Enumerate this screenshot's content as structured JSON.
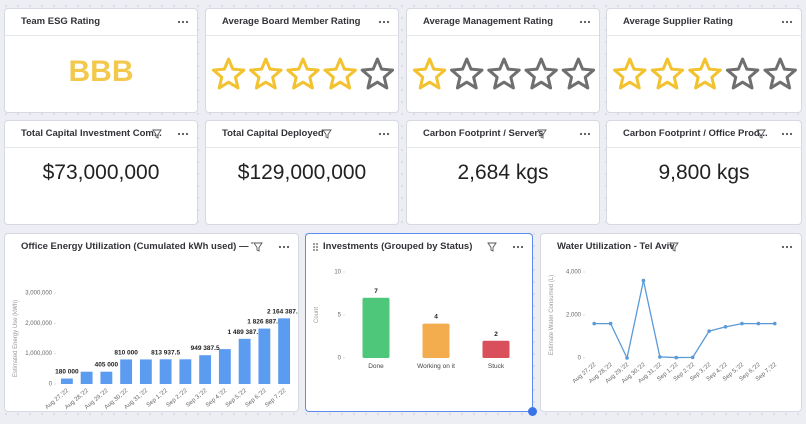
{
  "esg": {
    "title": "Team ESG Rating",
    "rating": "BBB"
  },
  "star_ratings": [
    {
      "title": "Average Board Member Rating",
      "rating": 4,
      "max": 5
    },
    {
      "title": "Average Management Rating",
      "rating": 1,
      "max": 5
    },
    {
      "title": "Average Supplier Rating",
      "rating": 3,
      "max": 5
    }
  ],
  "numbers": [
    {
      "title": "Total Capital Investment Com...",
      "value": "$73,000,000"
    },
    {
      "title": "Total Capital Deployed",
      "value": "$129,000,000"
    },
    {
      "title": "Carbon Footprint / Servers",
      "value": "2,684 kgs"
    },
    {
      "title": "Carbon Footprint / Office Prod...",
      "value": "9,800 kgs"
    }
  ],
  "chart_data": [
    {
      "type": "bar",
      "title": "Office Energy Utilization (Cumulated kWh used) — Tel A...",
      "y_label": "Estimated Energy Use (kWh)",
      "categories": [
        "Aug 27,'22",
        "Aug 28,'22",
        "Aug 29,'22",
        "Aug 30,'22",
        "Aug 31,'22",
        "Sep 1,'22",
        "Sep 2,'22",
        "Sep 3,'22",
        "Sep 4,'22",
        "Sep 5,'22",
        "Sep 6,'22",
        "Sep 7,'22"
      ],
      "values": [
        180000,
        405000,
        405000,
        810000,
        810000,
        813937.5,
        813937.5,
        949387.5,
        1150000,
        1489387.5,
        1826887.5,
        2164387.5
      ],
      "value_labels": [
        "180 000",
        null,
        "405 000",
        "810 000",
        null,
        "813 937.5",
        null,
        "949 387.5",
        null,
        "1 489 387.5",
        "1 826 887.5",
        "2 164 387.5"
      ],
      "color": "#5b9cf0",
      "ylim": [
        0,
        3000000
      ],
      "yticks": [
        0,
        {
          "value": 1000000,
          "label": "1,000,000"
        },
        {
          "value": 2000000,
          "label": "2,000,000"
        },
        {
          "value": 3000000,
          "label": "3,000,000"
        }
      ]
    },
    {
      "type": "bar",
      "title": "Investments (Grouped by Status)",
      "y_label": "Count",
      "categories": [
        "Done",
        "Working on it",
        "Stuck"
      ],
      "values": [
        7,
        4,
        2
      ],
      "colors": [
        "#4fc77a",
        "#f3ad4f",
        "#d9505c"
      ],
      "ylim": [
        0,
        10
      ],
      "yticks": [
        0,
        5,
        10
      ]
    },
    {
      "type": "line",
      "title": "Water Utilization - Tel Aviv",
      "y_label": "Estimate Water Consumed (L)",
      "categories": [
        "Aug 27,'22",
        "Aug 28,'22",
        "Aug 29,'22",
        "Aug 30,'22",
        "Aug 31,'22",
        "Sep 1,'22",
        "Sep 2,'22",
        "Sep 3,'22",
        "Sep 4,'22",
        "Sep 5,'22",
        "Sep 6,'22",
        "Sep 7,'22"
      ],
      "values": [
        1600,
        1600,
        0,
        3600,
        50,
        20,
        30,
        1250,
        1450,
        1600,
        1600,
        1600
      ],
      "color": "#5b9ad6",
      "ylim": [
        0,
        4000
      ],
      "yticks": [
        0,
        {
          "value": 2000,
          "label": "2,000"
        },
        {
          "value": 4000,
          "label": "4,000"
        }
      ]
    }
  ]
}
